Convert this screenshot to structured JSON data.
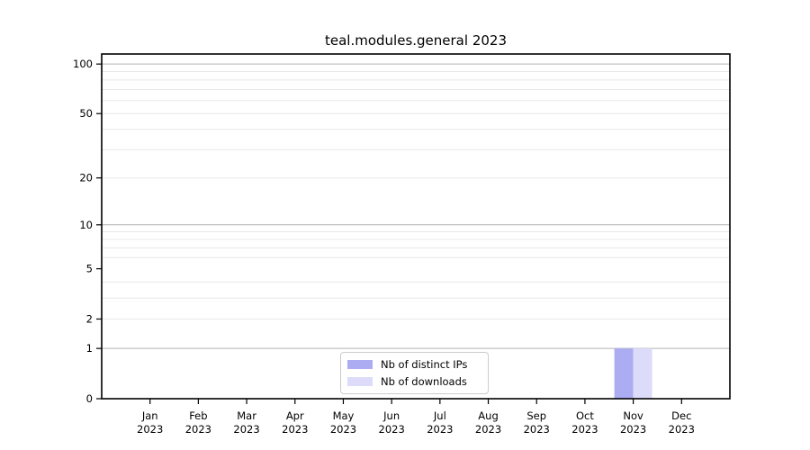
{
  "chart_data": {
    "type": "bar",
    "title": "teal.modules.general 2023",
    "categories": [
      "Jan",
      "Feb",
      "Mar",
      "Apr",
      "May",
      "Jun",
      "Jul",
      "Aug",
      "Sep",
      "Oct",
      "Nov",
      "Dec"
    ],
    "category_year": "2023",
    "x_tick_labels": [
      "Jan\n2023",
      "Feb\n2023",
      "Mar\n2023",
      "Apr\n2023",
      "May\n2023",
      "Jun\n2023",
      "Jul\n2023",
      "Aug\n2023",
      "Sep\n2023",
      "Oct\n2023",
      "Nov\n2023",
      "Dec\n2023"
    ],
    "series": [
      {
        "name": "Nb of distinct IPs",
        "color": "#acacf3",
        "values": [
          0,
          0,
          0,
          0,
          0,
          0,
          0,
          0,
          0,
          0,
          1,
          0
        ]
      },
      {
        "name": "Nb of downloads",
        "color": "#dcdcfa",
        "values": [
          0,
          0,
          0,
          0,
          0,
          0,
          0,
          0,
          0,
          0,
          1,
          0
        ]
      }
    ],
    "xlabel": "",
    "ylabel": "",
    "yscale": "log1p",
    "ylim": [
      0,
      115
    ],
    "y_tick_values": [
      0,
      1,
      2,
      5,
      10,
      20,
      50,
      100
    ],
    "y_tick_labels": [
      "0",
      "1",
      "2",
      "5",
      "10",
      "20",
      "50",
      "100"
    ],
    "major_gridline_values": [
      1,
      10,
      100
    ],
    "minor_gridline_values": [
      2,
      3,
      4,
      6,
      7,
      8,
      9,
      20,
      30,
      40,
      50,
      60,
      70,
      80,
      90
    ],
    "grid": true,
    "legend_position": "lower center"
  },
  "colors": {
    "background": "#ffffff",
    "spine": "#000000",
    "tick": "#000000",
    "tick_label": "#000000",
    "major_grid": "#b3b3b3",
    "minor_grid": "#e8e8e8",
    "legend_border": "#cccccc"
  }
}
